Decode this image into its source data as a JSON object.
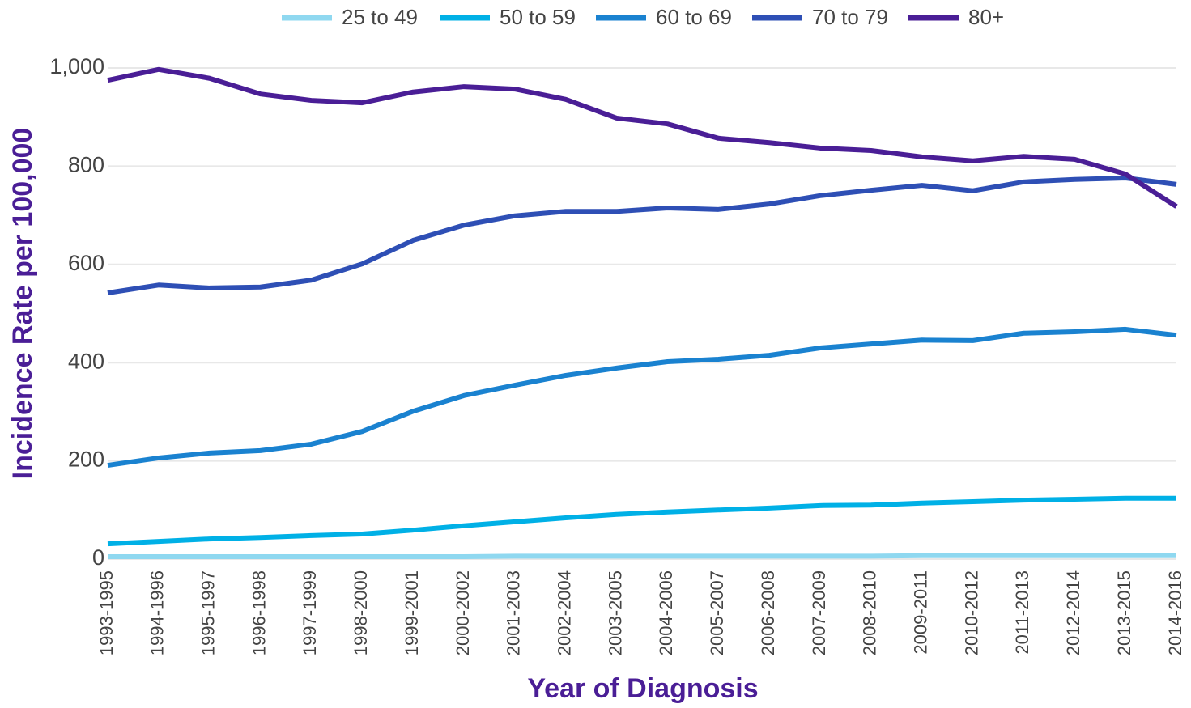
{
  "chart_data": {
    "type": "line",
    "x_label": "Year of Diagnosis",
    "y_label": "Incidence Rate per 100,000",
    "categories": [
      "1993-1995",
      "1994-1996",
      "1995-1997",
      "1996-1998",
      "1997-1999",
      "1998-2000",
      "1999-2001",
      "2000-2002",
      "2001-2003",
      "2002-2004",
      "2003-2005",
      "2004-2006",
      "2005-2007",
      "2006-2008",
      "2007-2009",
      "2008-2010",
      "2009-2011",
      "2010-2012",
      "2011-2013",
      "2012-2014",
      "2013-2015",
      "2014-2016"
    ],
    "series": [
      {
        "name": "25 to 49",
        "color": "#8fd8f0",
        "values": [
          5,
          5,
          5,
          5,
          5,
          5,
          5,
          5,
          6,
          6,
          6,
          6,
          6,
          6,
          6,
          6,
          7,
          7,
          7,
          7,
          7,
          7
        ]
      },
      {
        "name": "50 to 59",
        "color": "#00b0e6",
        "values": [
          31,
          36,
          41,
          44,
          48,
          51,
          59,
          68,
          76,
          84,
          91,
          96,
          100,
          104,
          109,
          110,
          114,
          117,
          120,
          122,
          124,
          124
        ]
      },
      {
        "name": "60 to 69",
        "color": "#1a82d0",
        "values": [
          191,
          206,
          216,
          221,
          234,
          260,
          301,
          333,
          354,
          374,
          389,
          402,
          407,
          415,
          430,
          438,
          446,
          445,
          460,
          463,
          468,
          456
        ]
      },
      {
        "name": "70 to 79",
        "color": "#2e4fb5",
        "values": [
          542,
          558,
          552,
          554,
          568,
          601,
          649,
          680,
          699,
          708,
          708,
          715,
          712,
          723,
          740,
          751,
          761,
          750,
          768,
          773,
          776,
          763
        ]
      },
      {
        "name": "80+",
        "color": "#4a1e96",
        "values": [
          975,
          997,
          979,
          947,
          934,
          929,
          951,
          962,
          957,
          936,
          898,
          886,
          857,
          848,
          837,
          832,
          819,
          811,
          820,
          814,
          784,
          718
        ]
      }
    ],
    "ylim": [
      0,
      1000
    ],
    "yticks": [
      0,
      200,
      400,
      600,
      800,
      {
        "value": 1000,
        "label": "1,000"
      }
    ],
    "grid": true,
    "legend": "top"
  }
}
